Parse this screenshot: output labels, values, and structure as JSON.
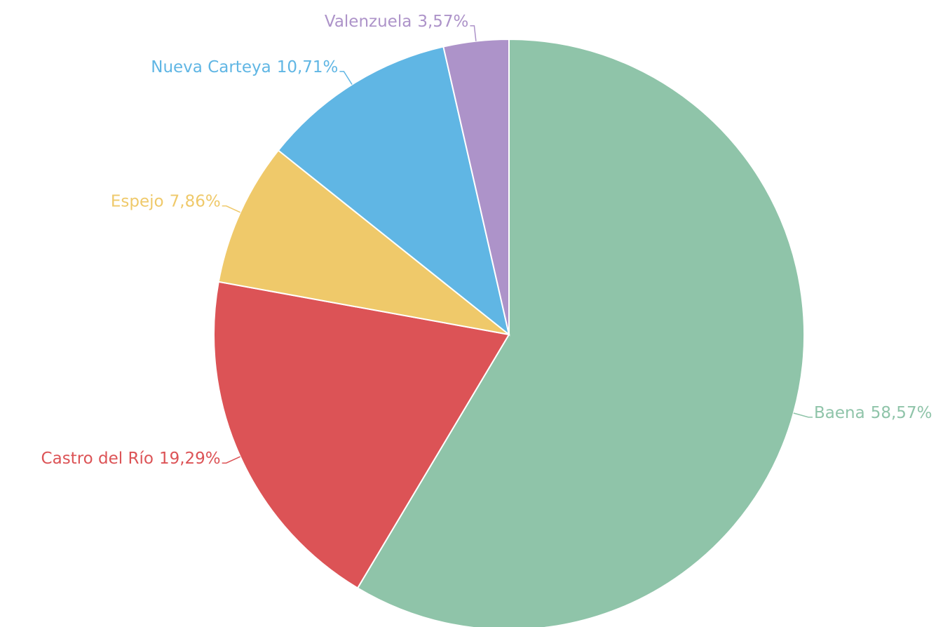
{
  "chart_data": {
    "type": "pie",
    "categories": [
      "Baena",
      "Castro del Río",
      "Espejo",
      "Nueva Carteya",
      "Valenzuela"
    ],
    "values": [
      58.57,
      19.29,
      7.86,
      10.71,
      3.57
    ],
    "value_labels": [
      "58,57%",
      "19,29%",
      "7,86%",
      "10,71%",
      "3,57%"
    ],
    "colors": [
      "#8fc4a9",
      "#dc5356",
      "#efc96a",
      "#60b6e4",
      "#ad93c9"
    ]
  }
}
